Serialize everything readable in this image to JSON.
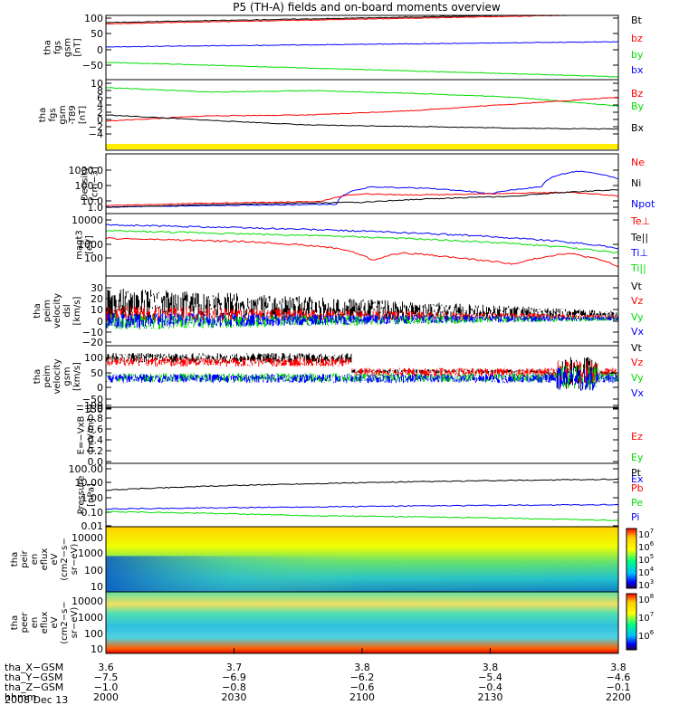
{
  "title": "P5 (TH-A) fields and on-board moments overview",
  "colors": {
    "black": "#000000",
    "red": "#ff0000",
    "green": "#00dd00",
    "blue": "#0000ff",
    "yellow": "#ffee00"
  },
  "chart_data": [
    {
      "type": "line",
      "ylabel": [
        "tha",
        "fgs",
        "gsm",
        "[nT]"
      ],
      "ylim": [
        -100,
        100
      ],
      "yticks": [
        "100",
        "50",
        "0",
        "−50"
      ],
      "legend": [
        {
          "t": "Bt",
          "c": "black"
        },
        {
          "t": "bz",
          "c": "red"
        },
        {
          "t": "by",
          "c": "green"
        },
        {
          "t": "bx",
          "c": "blue"
        }
      ],
      "series": [
        {
          "name": "Bt",
          "color": "black",
          "x": [
            0,
            1
          ],
          "y": [
            78,
            106
          ]
        },
        {
          "name": "bz",
          "color": "red",
          "x": [
            0,
            1
          ],
          "y": [
            74,
            103
          ]
        },
        {
          "name": "bx",
          "color": "blue",
          "x": [
            0,
            1
          ],
          "y": [
            2,
            18
          ]
        },
        {
          "name": "by",
          "color": "green",
          "x": [
            0,
            1
          ],
          "y": [
            -46,
            -91
          ]
        }
      ]
    },
    {
      "type": "line",
      "ylabel": [
        "tha",
        "fgs",
        "gsm",
        "-T89",
        "[nT]"
      ],
      "ylim": [
        -6,
        10
      ],
      "yticks": [
        "10",
        "8",
        "6",
        "4",
        "2",
        "0",
        "−2",
        "−4"
      ],
      "legend": [
        {
          "t": "Bz",
          "c": "red"
        },
        {
          "t": "By",
          "c": "green"
        },
        {
          "t": "Bx",
          "c": "black"
        }
      ],
      "series": [
        {
          "name": "By",
          "color": "green",
          "x": [
            0,
            0.2,
            0.4,
            0.6,
            0.8,
            1
          ],
          "y": [
            8.2,
            7.2,
            7.5,
            6.9,
            6.0,
            4.0
          ]
        },
        {
          "name": "Bz",
          "color": "red",
          "x": [
            0,
            0.2,
            0.4,
            0.6,
            0.8,
            1
          ],
          "y": [
            0.6,
            1.8,
            2.0,
            3.0,
            4.5,
            6.0
          ]
        },
        {
          "name": "Bx",
          "color": "black",
          "x": [
            0,
            0.2,
            0.4,
            0.6,
            0.8,
            1
          ],
          "y": [
            2.0,
            0.8,
            -0.3,
            -0.6,
            -1.0,
            -1.2
          ]
        }
      ]
    },
    {
      "type": "line",
      "log": true,
      "ylabel": [
        "Density",
        "[cm−3]"
      ],
      "ylim": [
        0.1,
        3000
      ],
      "yticks": [
        "1000.0",
        "100.0",
        "10.0",
        "1.0",
        "0.1"
      ],
      "legend": [
        {
          "t": "Ne",
          "c": "red"
        },
        {
          "t": "Ni",
          "c": "black"
        },
        {
          "t": "Npot",
          "c": "blue"
        }
      ],
      "series": [
        {
          "name": "Npot",
          "color": "blue",
          "x": [
            0,
            0.45,
            0.52,
            0.62,
            0.75,
            0.85,
            0.92,
            1
          ],
          "y": [
            0.3,
            0.5,
            10,
            8,
            3,
            10,
            150,
            40
          ]
        },
        {
          "name": "Ne",
          "color": "red",
          "x": [
            0,
            0.2,
            0.42,
            0.5,
            0.6,
            0.75,
            0.9,
            1
          ],
          "y": [
            0.4,
            0.6,
            0.8,
            3,
            2.5,
            3,
            4,
            2
          ]
        },
        {
          "name": "Ni",
          "color": "black",
          "x": [
            0,
            0.5,
            0.8,
            1
          ],
          "y": [
            0.3,
            0.7,
            2,
            6
          ]
        }
      ]
    },
    {
      "type": "line",
      "log": true,
      "ylabel": [
        "magt3",
        "[eV]"
      ],
      "ylim": [
        30,
        10000
      ],
      "yticks": [
        "10000",
        "1000",
        "100"
      ],
      "legend": [
        {
          "t": "Te⊥",
          "c": "red"
        },
        {
          "t": "Te||",
          "c": "black"
        },
        {
          "t": "Ti⊥",
          "c": "blue"
        },
        {
          "t": "Ti||",
          "c": "green"
        }
      ],
      "series": [
        {
          "name": "Ti⊥",
          "color": "blue",
          "x": [
            0,
            1
          ],
          "y": [
            3500,
            400
          ]
        },
        {
          "name": "Ti||",
          "color": "green",
          "x": [
            0,
            1
          ],
          "y": [
            2000,
            250
          ]
        },
        {
          "name": "Te",
          "color": "red",
          "x": [
            0,
            0.3,
            0.45,
            0.52,
            0.58,
            0.7,
            0.8,
            0.9,
            1
          ],
          "y": [
            1000,
            700,
            400,
            130,
            260,
            150,
            90,
            250,
            70
          ]
        }
      ]
    },
    {
      "type": "line",
      "ylabel": [
        "tha",
        "peim",
        "velocity",
        "dsl",
        "[km/s]"
      ],
      "ylim": [
        -20,
        30
      ],
      "yticks": [
        "30",
        "20",
        "10",
        "0",
        "−10",
        "−20"
      ],
      "legend": [
        {
          "t": "Vt",
          "c": "black"
        },
        {
          "t": "Vz",
          "c": "red"
        },
        {
          "t": "Vy",
          "c": "green"
        },
        {
          "t": "Vx",
          "c": "blue"
        }
      ]
    },
    {
      "type": "line",
      "ylabel": [
        "tha",
        "peim",
        "velocity",
        "gsm",
        "[km/s]"
      ],
      "ylim": [
        -150,
        150
      ],
      "yticks": [
        "100",
        "50",
        "0",
        "−50",
        "−100",
        "−150"
      ],
      "legend": [
        {
          "t": "Vt",
          "c": "black"
        },
        {
          "t": "Vz",
          "c": "red"
        },
        {
          "t": "Vy",
          "c": "green"
        },
        {
          "t": "Vx",
          "c": "blue"
        }
      ]
    },
    {
      "type": "line",
      "ylabel": [
        "E=−VxB",
        "[mV/m]"
      ],
      "ylim": [
        0,
        1
      ],
      "yticks": [
        "1.0",
        "0.8",
        "0.6",
        "0.4",
        "0.2",
        "0.0"
      ],
      "legend": [
        {
          "t": "Ez",
          "c": "red"
        },
        {
          "t": "Ey",
          "c": "green"
        },
        {
          "t": "Ex",
          "c": "blue"
        }
      ]
    },
    {
      "type": "line",
      "log": true,
      "ylabel": [
        "Pressure",
        "[nPa]"
      ],
      "ylim": [
        0.01,
        100
      ],
      "yticks": [
        "100.00",
        "10.00",
        "1.00",
        "0.10",
        "0.01"
      ],
      "legend": [
        {
          "t": "Pt",
          "c": "black"
        },
        {
          "t": "Pb",
          "c": "red"
        },
        {
          "t": "Pe",
          "c": "green"
        },
        {
          "t": "Pi",
          "c": "blue"
        }
      ],
      "series": [
        {
          "name": "Pt",
          "color": "black",
          "x": [
            0,
            1
          ],
          "y": [
            2,
            10
          ]
        },
        {
          "name": "Pi",
          "color": "blue",
          "x": [
            0,
            1
          ],
          "y": [
            0.13,
            0.25
          ]
        },
        {
          "name": "Pe",
          "color": "green",
          "x": [
            0,
            0.4,
            1
          ],
          "y": [
            0.09,
            0.05,
            0.025
          ]
        }
      ]
    },
    {
      "type": "heatmap",
      "ylabel": [
        "tha",
        "peir",
        "en",
        "eflux",
        "eV",
        "(cm2−s−",
        "sr−eV)"
      ],
      "yticks": [
        "10000",
        "1000",
        "100",
        "10"
      ],
      "cbar_ticks": [
        "10^7",
        "10^6",
        "10^5",
        "10^4",
        "10^3"
      ]
    },
    {
      "type": "heatmap",
      "ylabel": [
        "tha",
        "peer",
        "en",
        "eflux",
        "eV",
        "(cm2−s−",
        "sr−eV)"
      ],
      "yticks": [
        "10000",
        "1000",
        "100",
        "10"
      ],
      "cbar_ticks": [
        "10^8",
        "10^7",
        "10^6"
      ]
    }
  ],
  "x_axis": {
    "rows": [
      {
        "label": "tha_X−GSM",
        "values": [
          "3.6",
          "3.7",
          "3.8",
          "3.8",
          "3.8"
        ]
      },
      {
        "label": "tha_Y−GSM",
        "values": [
          "−7.5",
          "−6.9",
          "−6.2",
          "−5.4",
          "−4.6"
        ]
      },
      {
        "label": "tha_Z−GSM",
        "values": [
          "−1.0",
          "−0.8",
          "−0.6",
          "−0.4",
          "−0.1"
        ]
      },
      {
        "label": "hhmm",
        "values": [
          "2000",
          "2030",
          "2100",
          "2130",
          "2200"
        ]
      }
    ],
    "date": "2008 Dec 13"
  }
}
